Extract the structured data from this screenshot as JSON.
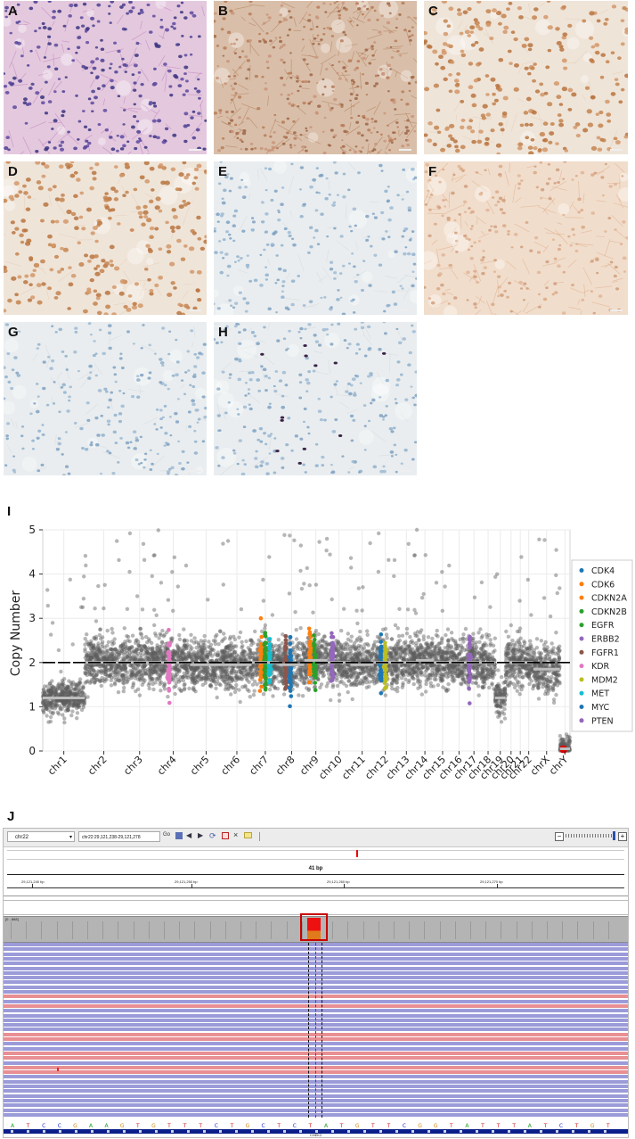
{
  "panels": [
    {
      "label": "A",
      "stain": "he"
    },
    {
      "label": "B",
      "stain": "brown-diffuse"
    },
    {
      "label": "C",
      "stain": "brown-nuclear"
    },
    {
      "label": "D",
      "stain": "brown-nuclear"
    },
    {
      "label": "E",
      "stain": "negative"
    },
    {
      "label": "F",
      "stain": "brown-membrane"
    },
    {
      "label": "G",
      "stain": "negative"
    },
    {
      "label": "H",
      "stain": "sparse-positive"
    }
  ],
  "chart_label": "I",
  "chart_data": {
    "type": "scatter",
    "ylabel": "Copy Number",
    "ylim": [
      0,
      5
    ],
    "yticks": [
      "0",
      "1",
      "2",
      "3",
      "4",
      "5"
    ],
    "categories": [
      "chr1",
      "chr2",
      "chr3",
      "chr4",
      "chr5",
      "chr6",
      "chr7",
      "chr8",
      "chr9",
      "chr10",
      "chr11",
      "chr12",
      "chr13",
      "chr14",
      "chr15",
      "chr16",
      "chr17",
      "chr18",
      "chr19",
      "chr20",
      "chr21",
      "chr22",
      "chrX",
      "chrY"
    ],
    "segment_means": [
      1.2,
      2.0,
      2.0,
      2.0,
      1.95,
      1.95,
      2.0,
      1.95,
      2.05,
      2.0,
      1.95,
      2.0,
      2.0,
      2.05,
      2.0,
      2.0,
      2.0,
      2.0,
      1.2,
      2.0,
      2.0,
      2.0,
      1.85,
      0.05
    ],
    "legend_position": "right",
    "legend": [
      {
        "name": "CDK4",
        "color": "#1f77b4",
        "chrom": "chr12"
      },
      {
        "name": "CDK6",
        "color": "#ff7f0e",
        "chrom": "chr7"
      },
      {
        "name": "CDKN2A",
        "color": "#ff7f0e",
        "chrom": "chr9"
      },
      {
        "name": "CDKN2B",
        "color": "#2ca02c",
        "chrom": "chr9"
      },
      {
        "name": "EGFR",
        "color": "#2ca02c",
        "chrom": "chr7"
      },
      {
        "name": "ERBB2",
        "color": "#9467bd",
        "chrom": "chr17"
      },
      {
        "name": "FGFR1",
        "color": "#8c564b",
        "chrom": "chr8"
      },
      {
        "name": "KDR",
        "color": "#e377c2",
        "chrom": "chr4"
      },
      {
        "name": "MDM2",
        "color": "#bcbd22",
        "chrom": "chr12"
      },
      {
        "name": "MET",
        "color": "#17becf",
        "chrom": "chr7"
      },
      {
        "name": "MYC",
        "color": "#1f77b4",
        "chrom": "chr8"
      },
      {
        "name": "PTEN",
        "color": "#9467bd",
        "chrom": "chr10"
      }
    ]
  },
  "igv": {
    "label": "J",
    "locus_dropdown": "chr22",
    "locus_input": "chr22:29,121,238-29,121,278",
    "go_label": "Go",
    "span_label": "41 bp",
    "ruler": [
      "29,121,240 bp",
      "29,121,250 bp",
      "29,121,260 bp",
      "29,121,270 bp"
    ],
    "coverage_label": "[0 - 868]",
    "sequence": "ATCCGAAGTGTTTCTGCTCTATGTTCGGTATTTATCTGT",
    "gene": "CHEK2"
  }
}
